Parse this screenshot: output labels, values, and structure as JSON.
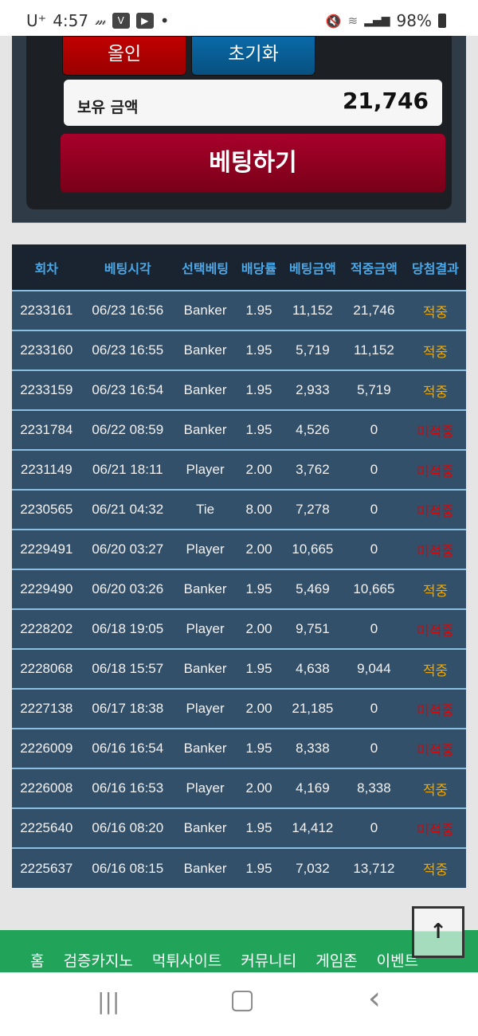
{
  "status_bar": {
    "carrier": "U⁺",
    "time": "4:57",
    "battery": "98%",
    "icons": [
      "m-icon",
      "vs-app-icon",
      "youtube-icon",
      "dot-icon",
      "mute-icon",
      "wifi-icon",
      "signal-icon",
      "battery-icon"
    ]
  },
  "bet_panel": {
    "allin_label": "올인",
    "reset_label": "초기화",
    "balance_label": "보유 금액",
    "balance_value": "21,746",
    "bet_label": "베팅하기"
  },
  "table": {
    "headers": [
      "회차",
      "베팅시각",
      "선택베팅",
      "배당률",
      "베팅금액",
      "적중금액",
      "당첨결과"
    ],
    "rows": [
      [
        "2233161",
        "06/23 16:56",
        "Banker",
        "1.95",
        "11,152",
        "21,746",
        "적중"
      ],
      [
        "2233160",
        "06/23 16:55",
        "Banker",
        "1.95",
        "5,719",
        "11,152",
        "적중"
      ],
      [
        "2233159",
        "06/23 16:54",
        "Banker",
        "1.95",
        "2,933",
        "5,719",
        "적중"
      ],
      [
        "2231784",
        "06/22 08:59",
        "Banker",
        "1.95",
        "4,526",
        "0",
        "미적중"
      ],
      [
        "2231149",
        "06/21 18:11",
        "Player",
        "2.00",
        "3,762",
        "0",
        "미적중"
      ],
      [
        "2230565",
        "06/21 04:32",
        "Tie",
        "8.00",
        "7,278",
        "0",
        "미적중"
      ],
      [
        "2229491",
        "06/20 03:27",
        "Player",
        "2.00",
        "10,665",
        "0",
        "미적중"
      ],
      [
        "2229490",
        "06/20 03:26",
        "Banker",
        "1.95",
        "5,469",
        "10,665",
        "적중"
      ],
      [
        "2228202",
        "06/18 19:05",
        "Player",
        "2.00",
        "9,751",
        "0",
        "미적중"
      ],
      [
        "2228068",
        "06/18 15:57",
        "Banker",
        "1.95",
        "4,638",
        "9,044",
        "적중"
      ],
      [
        "2227138",
        "06/17 18:38",
        "Player",
        "2.00",
        "21,185",
        "0",
        "미적중"
      ],
      [
        "2226009",
        "06/16 16:54",
        "Banker",
        "1.95",
        "8,338",
        "0",
        "미적중"
      ],
      [
        "2226008",
        "06/16 16:53",
        "Player",
        "2.00",
        "4,169",
        "8,338",
        "적중"
      ],
      [
        "2225640",
        "06/16 08:20",
        "Banker",
        "1.95",
        "14,412",
        "0",
        "미적중"
      ],
      [
        "2225637",
        "06/16 08:15",
        "Banker",
        "1.95",
        "7,032",
        "13,712",
        "적중"
      ]
    ],
    "win_color": "#f0a800",
    "lose_color": "#e00000"
  },
  "footer_nav": [
    "홈",
    "검증카지노",
    "먹튀사이트",
    "커뮤니티",
    "게임존",
    "이벤트"
  ],
  "scroll_top": {
    "icon": "arrow-up-icon",
    "glyph": "🡅"
  },
  "system_nav": {
    "recents": "|||",
    "home": "▢",
    "back": "‹"
  }
}
